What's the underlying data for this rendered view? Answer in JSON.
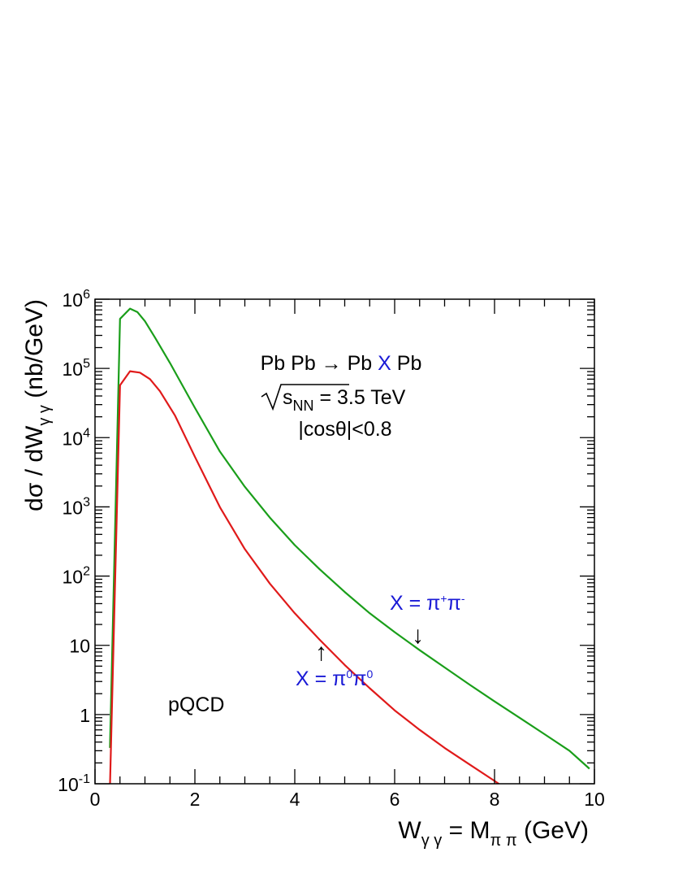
{
  "chart_data": {
    "type": "line",
    "title": "",
    "xlabel": {
      "main": "W",
      "sub1": "γ γ",
      "eq": " = M",
      "sub2": "π π",
      "unit": " (GeV)"
    },
    "ylabel": {
      "main": "dσ / dW",
      "sub": "γ γ",
      "unit": " (nb/GeV)"
    },
    "xlim": [
      0,
      10
    ],
    "ylim": [
      0.1,
      1000000
    ],
    "yscale": "log",
    "grid": false,
    "x_ticks": [
      {
        "v": 0,
        "label": "0"
      },
      {
        "v": 2,
        "label": "2"
      },
      {
        "v": 4,
        "label": "4"
      },
      {
        "v": 6,
        "label": "6"
      },
      {
        "v": 8,
        "label": "8"
      },
      {
        "v": 10,
        "label": "10"
      }
    ],
    "y_ticks": [
      {
        "v": 0.1,
        "base": "10",
        "exp": "-1"
      },
      {
        "v": 1,
        "base": "1",
        "exp": ""
      },
      {
        "v": 10,
        "base": "10",
        "exp": ""
      },
      {
        "v": 100,
        "base": "10",
        "exp": "2"
      },
      {
        "v": 1000,
        "base": "10",
        "exp": "3"
      },
      {
        "v": 10000,
        "base": "10",
        "exp": "4"
      },
      {
        "v": 100000,
        "base": "10",
        "exp": "5"
      },
      {
        "v": 1000000,
        "base": "10",
        "exp": "6"
      }
    ],
    "series": [
      {
        "color": "#1a9e1a",
        "x": [
          0.3,
          0.5,
          0.7,
          0.85,
          1.0,
          1.2,
          1.5,
          2.0,
          2.5,
          3.0,
          3.5,
          4.0,
          4.5,
          5.0,
          5.5,
          6.0,
          6.5,
          7.0,
          7.5,
          8.0,
          8.5,
          9.0,
          9.5,
          9.9
        ],
        "y": [
          0.33,
          520000,
          730000,
          650000,
          480000,
          280000,
          120000,
          27000,
          6300,
          1950,
          700,
          280,
          125,
          59,
          29,
          15.5,
          8.5,
          4.8,
          2.7,
          1.55,
          0.9,
          0.52,
          0.3,
          0.165
        ]
      },
      {
        "color": "#e01a1a",
        "x": [
          0.3,
          0.5,
          0.7,
          0.9,
          1.1,
          1.3,
          1.6,
          2.0,
          2.5,
          3.0,
          3.5,
          4.0,
          4.5,
          5.0,
          5.5,
          6.0,
          6.5,
          7.0,
          7.5,
          8.0,
          8.45
        ],
        "y": [
          0.09,
          57000,
          91000,
          87000,
          70000,
          47000,
          21000,
          5300,
          990,
          245,
          78,
          29,
          12,
          5.2,
          2.4,
          1.15,
          0.6,
          0.33,
          0.19,
          0.11,
          0.066
        ]
      }
    ],
    "annotations": {
      "process": {
        "part1": "Pb Pb → Pb ",
        "x": "X",
        "part2": " Pb"
      },
      "energy": {
        "s": "s",
        "sub": "NN",
        "value": " = 3.5 TeV"
      },
      "cut": "|cosθ|<0.8",
      "charged": {
        "lhs": "X = π",
        "sup1": "+",
        "mid": "π",
        "sup2": "-",
        "arrow": "↓"
      },
      "neutral": {
        "lhs": "X = π",
        "sup1": "0",
        "mid": "π",
        "sup2": "0",
        "arrow": "↑"
      },
      "method": "pQCD"
    }
  }
}
